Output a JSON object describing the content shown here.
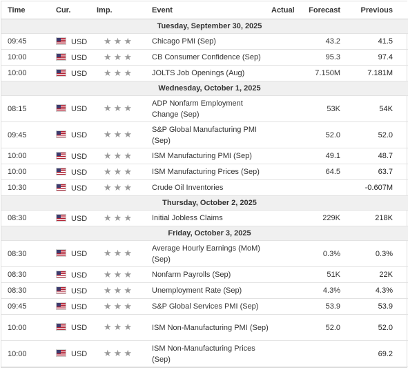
{
  "headers": {
    "time": "Time",
    "cur": "Cur.",
    "imp": "Imp.",
    "event": "Event",
    "actual": "Actual",
    "forecast": "Forecast",
    "previous": "Previous"
  },
  "colors": {
    "star": "#9a9a9a",
    "date_row_bg": "#f0f0f0",
    "border": "#e2e2e2"
  },
  "icons": {
    "flag": "us-flag-icon",
    "star": "star-icon"
  },
  "days": [
    {
      "date": "Tuesday, September 30, 2025",
      "rows": [
        {
          "time": "09:45",
          "cur": "USD",
          "event": "Chicago PMI (Sep)",
          "actual": "",
          "forecast": "43.2",
          "previous": "41.5",
          "tall": false
        },
        {
          "time": "10:00",
          "cur": "USD",
          "event": "CB Consumer Confidence (Sep)",
          "actual": "",
          "forecast": "95.3",
          "previous": "97.4",
          "tall": false
        },
        {
          "time": "10:00",
          "cur": "USD",
          "event": "JOLTS Job Openings (Aug)",
          "actual": "",
          "forecast": "7.150M",
          "previous": "7.181M",
          "tall": false
        }
      ]
    },
    {
      "date": "Wednesday, October 1, 2025",
      "rows": [
        {
          "time": "08:15",
          "cur": "USD",
          "event": "ADP Nonfarm Employment Change (Sep)",
          "actual": "",
          "forecast": "53K",
          "previous": "54K",
          "tall": true
        },
        {
          "time": "09:45",
          "cur": "USD",
          "event": "S&P Global Manufacturing PMI (Sep)",
          "actual": "",
          "forecast": "52.0",
          "previous": "52.0",
          "tall": true
        },
        {
          "time": "10:00",
          "cur": "USD",
          "event": "ISM Manufacturing PMI (Sep)",
          "actual": "",
          "forecast": "49.1",
          "previous": "48.7",
          "tall": false
        },
        {
          "time": "10:00",
          "cur": "USD",
          "event": "ISM Manufacturing Prices (Sep)",
          "actual": "",
          "forecast": "64.5",
          "previous": "63.7",
          "tall": false
        },
        {
          "time": "10:30",
          "cur": "USD",
          "event": "Crude Oil Inventories",
          "actual": "",
          "forecast": "",
          "previous": "-0.607M",
          "tall": false
        }
      ]
    },
    {
      "date": "Thursday, October 2, 2025",
      "rows": [
        {
          "time": "08:30",
          "cur": "USD",
          "event": "Initial Jobless Claims",
          "actual": "",
          "forecast": "229K",
          "previous": "218K",
          "tall": false
        }
      ]
    },
    {
      "date": "Friday, October 3, 2025",
      "rows": [
        {
          "time": "08:30",
          "cur": "USD",
          "event": "Average Hourly Earnings (MoM) (Sep)",
          "actual": "",
          "forecast": "0.3%",
          "previous": "0.3%",
          "tall": true
        },
        {
          "time": "08:30",
          "cur": "USD",
          "event": "Nonfarm Payrolls (Sep)",
          "actual": "",
          "forecast": "51K",
          "previous": "22K",
          "tall": false
        },
        {
          "time": "08:30",
          "cur": "USD",
          "event": "Unemployment Rate (Sep)",
          "actual": "",
          "forecast": "4.3%",
          "previous": "4.3%",
          "tall": false
        },
        {
          "time": "09:45",
          "cur": "USD",
          "event": "S&P Global Services PMI (Sep)",
          "actual": "",
          "forecast": "53.9",
          "previous": "53.9",
          "tall": false
        },
        {
          "time": "10:00",
          "cur": "USD",
          "event": "ISM Non-Manufacturing PMI (Sep)",
          "actual": "",
          "forecast": "52.0",
          "previous": "52.0",
          "tall": true
        },
        {
          "time": "10:00",
          "cur": "USD",
          "event": "ISM Non-Manufacturing Prices (Sep)",
          "actual": "",
          "forecast": "",
          "previous": "69.2",
          "tall": true
        }
      ]
    }
  ]
}
